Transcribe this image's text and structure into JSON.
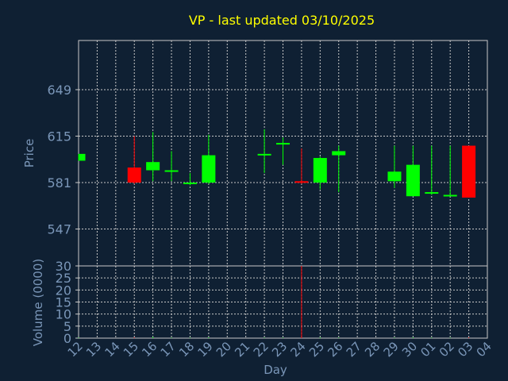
{
  "chart_data": {
    "type": "candlestick",
    "title": "VP - last updated 03/10/2025",
    "xlabel": "Day",
    "price_panel": {
      "ylabel": "Price",
      "ylim": [
        520,
        685
      ],
      "yticks": [
        547,
        581,
        615,
        649
      ],
      "grid": true
    },
    "volume_panel": {
      "ylabel": "Volume (0000)",
      "ylim": [
        0,
        30
      ],
      "yticks": [
        0,
        5,
        10,
        15,
        20,
        25,
        30
      ],
      "grid": true
    },
    "x_tick_labels": [
      "12",
      "13",
      "14",
      "15",
      "16",
      "17",
      "18",
      "19",
      "20",
      "21",
      "22",
      "23",
      "24",
      "25",
      "26",
      "27",
      "28",
      "29",
      "30",
      "01",
      "02",
      "03",
      "04"
    ],
    "candles": [
      {
        "day": "12",
        "open": 597,
        "close": 602,
        "high": 602,
        "low": 597,
        "volume": 0.2
      },
      {
        "day": "15",
        "open": 592,
        "close": 581,
        "high": 615,
        "low": 580,
        "volume": 0.3
      },
      {
        "day": "16",
        "open": 590,
        "close": 596,
        "high": 618,
        "low": 582,
        "volume": 0.5
      },
      {
        "day": "17",
        "open": 589,
        "close": 590,
        "high": 604,
        "low": 582,
        "volume": 0.2
      },
      {
        "day": "18",
        "open": 580,
        "close": 581,
        "high": 588,
        "low": 579,
        "volume": 0.2
      },
      {
        "day": "19",
        "open": 581,
        "close": 601,
        "high": 616,
        "low": 580,
        "volume": 0.3
      },
      {
        "day": "22",
        "open": 601,
        "close": 602,
        "high": 620,
        "low": 588,
        "volume": 0.2
      },
      {
        "day": "23",
        "open": 609,
        "close": 610,
        "high": 614,
        "low": 594,
        "volume": 0.2
      },
      {
        "day": "24",
        "open": 582,
        "close": 581,
        "high": 606,
        "low": 580,
        "volume": 30
      },
      {
        "day": "25",
        "open": 581,
        "close": 599,
        "high": 600,
        "low": 576,
        "volume": 0.3
      },
      {
        "day": "26",
        "open": 601,
        "close": 604,
        "high": 608,
        "low": 574,
        "volume": 0.2
      },
      {
        "day": "29",
        "open": 582,
        "close": 589,
        "high": 608,
        "low": 577,
        "volume": 0.2
      },
      {
        "day": "30",
        "open": 571,
        "close": 594,
        "high": 608,
        "low": 571,
        "volume": 0.3
      },
      {
        "day": "01",
        "open": 573,
        "close": 574,
        "high": 608,
        "low": 572,
        "volume": 0.2
      },
      {
        "day": "02",
        "open": 571,
        "close": 572,
        "high": 608,
        "low": 571,
        "volume": 0.2
      },
      {
        "day": "03",
        "open": 608,
        "close": 570,
        "high": 608,
        "low": 570,
        "volume": 0.3
      }
    ],
    "colors": {
      "background": "#0f2033",
      "grid": "#c8c8c8",
      "axis_text": "#7a96b8",
      "title": "#ffff00",
      "up": "#00ff00",
      "down": "#ff0000"
    }
  }
}
